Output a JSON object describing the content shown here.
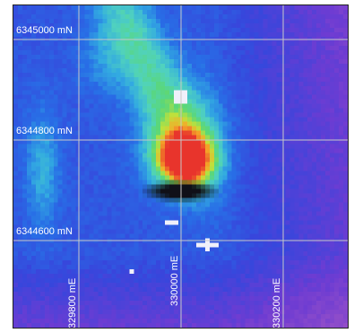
{
  "map": {
    "northing_labels": [
      "6345000 mN",
      "6344800 mN",
      "6344600 mN"
    ],
    "easting_labels": [
      "329800 mE",
      "330000 mE",
      "330200 mE"
    ]
  },
  "colors": {
    "background_blue": "#3a3fd6",
    "grid": "#c8c8c8",
    "anomaly_high": "#e8342c",
    "anomaly_low": "#101018"
  }
}
